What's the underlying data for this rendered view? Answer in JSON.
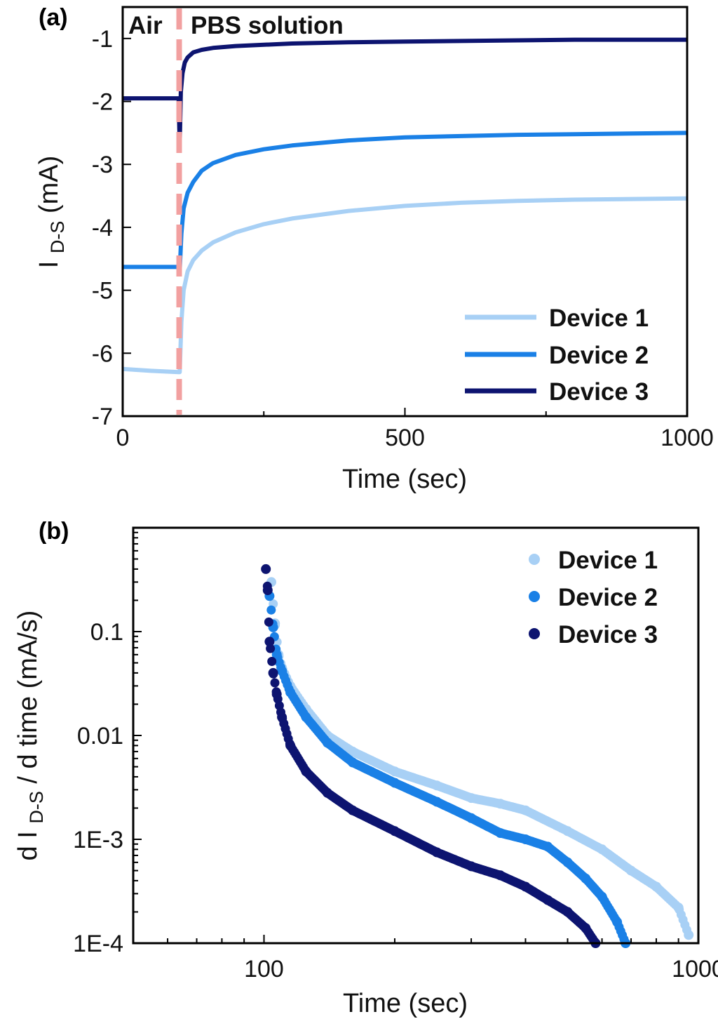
{
  "colors": {
    "device1": "#a8d0f5",
    "device2": "#1a80e6",
    "device3": "#0d1470",
    "air_pbs_marker": "#f2a0a0"
  },
  "chart_data": [
    {
      "panel": "(a)",
      "type": "line",
      "xlabel": "Time (sec)",
      "ylabel_main": "I",
      "ylabel_sub": "D-S",
      "ylabel_unit": "(mA)",
      "xlim": [
        0,
        1000
      ],
      "ylim": [
        -7,
        -0.5
      ],
      "xticks": [
        0,
        500,
        1000
      ],
      "xtick_labels": [
        "0",
        "500",
        "1000"
      ],
      "yticks": [
        -1,
        -2,
        -3,
        -4,
        -5,
        -6,
        -7
      ],
      "ytick_labels": [
        "-1",
        "-2",
        "-3",
        "-4",
        "-5",
        "-6",
        "-7"
      ],
      "switch_time": 100,
      "region_labels": [
        "Air",
        "PBS solution"
      ],
      "legend_position": "bottom-right",
      "grid": false,
      "series": [
        {
          "name": "Device 1",
          "color_key": "device1",
          "x": [
            0,
            50,
            99,
            101,
            104,
            108,
            115,
            125,
            140,
            160,
            200,
            250,
            300,
            400,
            500,
            600,
            700,
            800,
            900,
            1000
          ],
          "y": [
            -6.25,
            -6.28,
            -6.3,
            -6.3,
            -5.5,
            -5.0,
            -4.7,
            -4.52,
            -4.37,
            -4.24,
            -4.08,
            -3.95,
            -3.86,
            -3.74,
            -3.66,
            -3.61,
            -3.58,
            -3.56,
            -3.55,
            -3.54
          ]
        },
        {
          "name": "Device 2",
          "color_key": "device2",
          "x": [
            0,
            50,
            99,
            101,
            104,
            108,
            115,
            125,
            140,
            160,
            200,
            250,
            300,
            400,
            500,
            600,
            700,
            800,
            900,
            1000
          ],
          "y": [
            -4.63,
            -4.63,
            -4.63,
            -4.7,
            -4.1,
            -3.7,
            -3.45,
            -3.28,
            -3.1,
            -2.98,
            -2.85,
            -2.76,
            -2.7,
            -2.62,
            -2.57,
            -2.55,
            -2.53,
            -2.52,
            -2.51,
            -2.5
          ]
        },
        {
          "name": "Device 3",
          "color_key": "device3",
          "x": [
            0,
            50,
            99,
            101,
            103,
            106,
            110,
            115,
            125,
            140,
            160,
            200,
            300,
            400,
            500,
            600,
            700,
            800,
            900,
            1000
          ],
          "y": [
            -1.95,
            -1.95,
            -1.95,
            -2.7,
            -1.85,
            -1.55,
            -1.38,
            -1.3,
            -1.22,
            -1.18,
            -1.15,
            -1.12,
            -1.08,
            -1.06,
            -1.05,
            -1.04,
            -1.03,
            -1.02,
            -1.02,
            -1.02
          ]
        }
      ]
    },
    {
      "panel": "(b)",
      "type": "scatter",
      "xlabel": "Time (sec)",
      "ylabel_pre": "d I",
      "ylabel_sub": "D-S",
      "ylabel_post": "/ d time (mA/s)",
      "xscale": "log",
      "yscale": "log",
      "xlim": [
        50,
        1000
      ],
      "ylim": [
        0.0001,
        1
      ],
      "xticks": [
        100,
        1000
      ],
      "xtick_labels": [
        "100",
        "1000"
      ],
      "yticks": [
        0.1,
        0.01,
        0.001,
        0.0001
      ],
      "ytick_labels": [
        "0.1",
        "0.01",
        "1E-3",
        "1E-4"
      ],
      "legend_position": "top-right",
      "grid": false,
      "series": [
        {
          "name": "Device 1",
          "color_key": "device1",
          "x": [
            104,
            106,
            108,
            110,
            115,
            125,
            140,
            160,
            200,
            250,
            300,
            350,
            400,
            500,
            600,
            700,
            800,
            900,
            950
          ],
          "y": [
            0.3,
            0.12,
            0.06,
            0.045,
            0.03,
            0.018,
            0.01,
            0.007,
            0.0045,
            0.0033,
            0.0025,
            0.0022,
            0.0019,
            0.0012,
            0.0008,
            0.0005,
            0.00035,
            0.00022,
            0.00012
          ]
        },
        {
          "name": "Device 2",
          "color_key": "device2",
          "x": [
            103,
            105,
            107,
            110,
            115,
            125,
            140,
            160,
            200,
            250,
            300,
            350,
            400,
            450,
            500,
            550,
            600,
            650,
            680
          ],
          "y": [
            0.22,
            0.11,
            0.06,
            0.042,
            0.026,
            0.015,
            0.0085,
            0.0055,
            0.0035,
            0.0023,
            0.0016,
            0.00115,
            0.001,
            0.00085,
            0.0006,
            0.00042,
            0.00028,
            0.00016,
            0.0001
          ]
        },
        {
          "name": "Device 3",
          "color_key": "device3",
          "x": [
            101,
            102,
            103,
            105,
            107,
            110,
            115,
            125,
            140,
            160,
            200,
            250,
            300,
            350,
            400,
            450,
            500,
            550,
            580
          ],
          "y": [
            0.4,
            0.25,
            0.08,
            0.04,
            0.025,
            0.015,
            0.008,
            0.0045,
            0.0028,
            0.0019,
            0.0012,
            0.00075,
            0.00055,
            0.00045,
            0.00035,
            0.00026,
            0.0002,
            0.00014,
            0.0001
          ]
        }
      ]
    }
  ]
}
